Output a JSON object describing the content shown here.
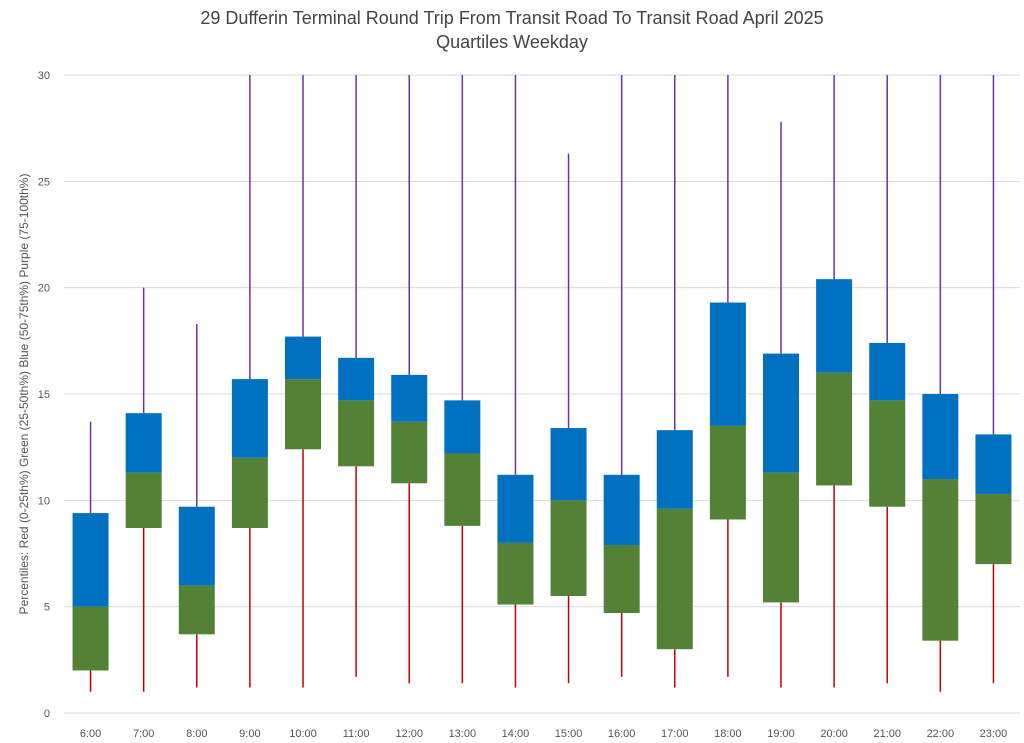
{
  "chart_data": {
    "type": "box",
    "title": "29 Dufferin Terminal Round Trip From Transit Road To Transit Road April 2025",
    "subtitle": "Quartiles Weekday",
    "ylabel": "Percentiles:  Red (0-25th%)  Green (25-50th%)  Blue (50-75th%)  Purple (75-100th%)",
    "xlabel": "",
    "ylim": [
      0,
      30
    ],
    "yticks": [
      "0",
      "5",
      "10",
      "15",
      "20",
      "25",
      "30"
    ],
    "grid": true,
    "categories": [
      "6:00",
      "7:00",
      "8:00",
      "9:00",
      "10:00",
      "11:00",
      "12:00",
      "13:00",
      "14:00",
      "15:00",
      "16:00",
      "17:00",
      "18:00",
      "19:00",
      "20:00",
      "21:00",
      "22:00",
      "23:00"
    ],
    "min": [
      1.0,
      1.0,
      1.2,
      1.2,
      1.2,
      1.7,
      1.4,
      1.4,
      1.2,
      1.4,
      1.7,
      1.2,
      1.7,
      1.2,
      1.2,
      1.4,
      1.0,
      1.4
    ],
    "q1": [
      2.0,
      8.7,
      3.7,
      8.7,
      12.4,
      11.6,
      10.8,
      8.8,
      5.1,
      5.5,
      4.7,
      3.0,
      9.1,
      5.2,
      10.7,
      9.7,
      3.4,
      7.0
    ],
    "median": [
      5.0,
      11.3,
      6.0,
      12.0,
      15.7,
      14.7,
      13.7,
      12.2,
      8.0,
      10.0,
      7.9,
      9.6,
      13.5,
      11.3,
      16.0,
      14.7,
      11.0,
      10.3
    ],
    "q3": [
      9.4,
      14.1,
      9.7,
      15.7,
      17.7,
      16.7,
      15.9,
      14.7,
      11.2,
      13.4,
      11.2,
      13.3,
      19.3,
      16.9,
      20.4,
      17.4,
      15.0,
      13.1
    ],
    "max": [
      13.7,
      20.0,
      18.3,
      30,
      30,
      30,
      30,
      30,
      30,
      26.3,
      30,
      30,
      30,
      27.8,
      30,
      30,
      30,
      30
    ],
    "colors": {
      "lower_whisker": "#c00000",
      "lower_box": "#538135",
      "upper_box": "#0070c0",
      "upper_whisker": "#7030a0",
      "grid": "#d9d9d9"
    }
  }
}
